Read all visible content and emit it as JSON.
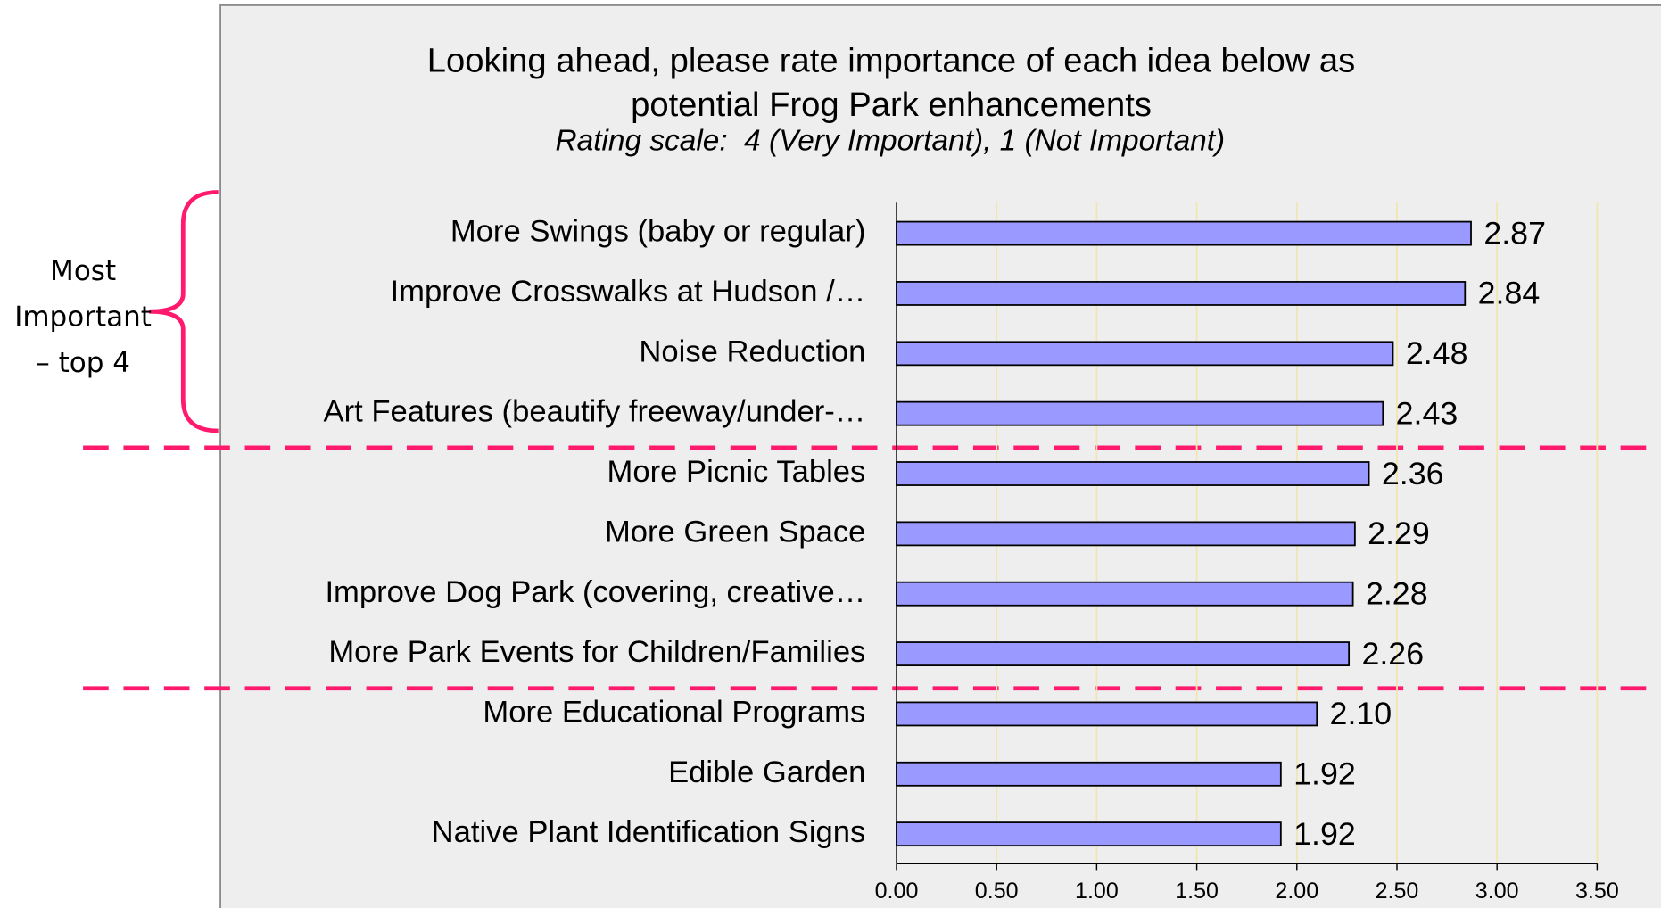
{
  "chart_data": {
    "type": "barh",
    "title": "Looking ahead, please rate importance of each idea below as potential Frog Park enhancements",
    "subtitle": "Rating scale:  4 (Very Important), 1 (Not Important)",
    "annotation": [
      "Most",
      "Important",
      "– top 4"
    ],
    "categories": [
      "More Swings (baby or regular)",
      "Improve Crosswalks at Hudson /…",
      "Noise Reduction",
      "Art Features (beautify freeway/under-…",
      "More Picnic Tables",
      "More Green Space",
      "Improve Dog Park (covering, creative…",
      "More Park Events for Children/Families",
      "More Educational Programs",
      "Edible Garden",
      "Native Plant Identification Signs"
    ],
    "values": [
      2.87,
      2.84,
      2.48,
      2.43,
      2.36,
      2.29,
      2.28,
      2.26,
      2.1,
      1.92,
      1.92
    ],
    "value_labels": [
      "2.87",
      "2.84",
      "2.48",
      "2.43",
      "2.36",
      "2.29",
      "2.28",
      "2.26",
      "2.10",
      "1.92",
      "1.92"
    ],
    "color": "#9999ff",
    "xlim": [
      0,
      3.5
    ],
    "xticks": [
      {
        "value": 0,
        "label": "0.00"
      },
      {
        "value": 0.5,
        "label": "0.50"
      },
      {
        "value": 1,
        "label": "1.00"
      },
      {
        "value": 1.5,
        "label": "1.50"
      },
      {
        "value": 2,
        "label": "2.00"
      },
      {
        "value": 2.5,
        "label": "2.50"
      },
      {
        "value": 3,
        "label": "3.00"
      },
      {
        "value": 3.5,
        "label": "3.50"
      }
    ],
    "grid": true
  }
}
